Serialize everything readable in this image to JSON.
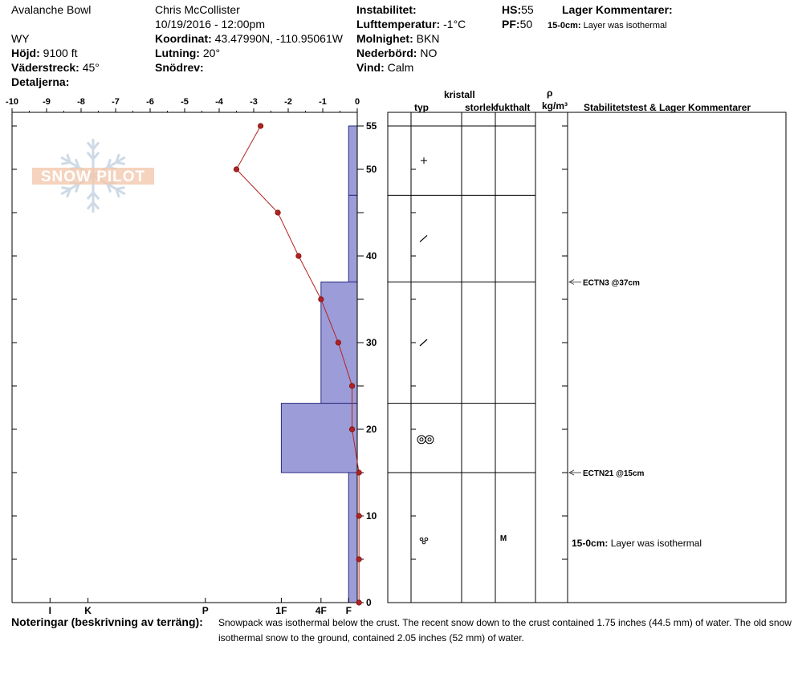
{
  "header": {
    "location": "Avalanche Bowl",
    "state": "WY",
    "elevation_label": "Höjd:",
    "elevation_value": "9100 ft",
    "aspect_label": "Väderstreck:",
    "aspect_value": "45°",
    "details_label": "Detaljerna:",
    "observer": "Chris McCollister",
    "datetime": "10/19/2016 - 12:00pm",
    "coord_label": "Koordinat:",
    "coord_value": "43.47990N, -110.95061W",
    "slope_label": "Lutning:",
    "slope_value": "20°",
    "drift_label": "Snödrev:",
    "instab_label": "Instabilitet:",
    "airtemp_label": "Lufttemperatur:",
    "airtemp_value": "-1°C",
    "cloud_label": "Molnighet:",
    "cloud_value": "BKN",
    "precip_label": "Nederbörd:",
    "precip_value": "NO",
    "wind_label": "Vind:",
    "wind_value": "Calm",
    "hs_label": "HS:",
    "hs_value": "55",
    "pf_label": "PF:",
    "pf_value": "50",
    "layer_comments_label": "Lager Kommentarer:",
    "layer_comment_range": "15-0cm:",
    "layer_comment_text": "Layer was isothermal"
  },
  "table": {
    "crystal_label": "kristall",
    "type_label": "typ",
    "size_label": "storlek",
    "moisture_label": "fukthalt",
    "density_symbol": "ρ",
    "density_unit": "kg/m³",
    "stability_label": "Stabilitetstest & Lager Kommentarer",
    "tests": [
      {
        "depth": 37,
        "label": "ECTN3 @37cm"
      },
      {
        "depth": 15,
        "label": "ECTN21 @15cm"
      }
    ],
    "comment_range": "15-0cm:",
    "comment_text": "Layer was isothermal",
    "layers": [
      {
        "top": 55,
        "bottom": 47,
        "grain": "plus"
      },
      {
        "top": 47,
        "bottom": 37,
        "grain": "slash"
      },
      {
        "top": 37,
        "bottom": 23,
        "grain": "slash"
      },
      {
        "top": 23,
        "bottom": 15,
        "grain": "rounds"
      },
      {
        "top": 15,
        "bottom": 0,
        "grain": "wet",
        "moisture": "M"
      }
    ]
  },
  "notes": {
    "label": "Noteringar (beskrivning av terräng):",
    "line1": "Snowpack was isothermal below the crust. The recent snow down to the crust contained 1.75 inches (44.5 mm) of water. The old snow",
    "line2": "isothermal snow to the ground, contained 2.05 inches (52 mm) of water."
  },
  "logo": {
    "text": "SNOW PILOT"
  },
  "chart_data": {
    "type": "line",
    "x_axis": {
      "range": [
        -10,
        0
      ],
      "ticks": [
        -10,
        -9,
        -8,
        -7,
        -6,
        -5,
        -4,
        -3,
        -2,
        -1,
        0
      ],
      "tick_labels": [
        "-10",
        "-9",
        "-8",
        "-7",
        "-6",
        "-5",
        "-4",
        "-3",
        "-2",
        "-1",
        "0"
      ]
    },
    "y_axis": {
      "range": [
        0,
        56
      ],
      "tick_labels": [
        0,
        10,
        20,
        30,
        40,
        50,
        55
      ]
    },
    "hardness_axis": {
      "labels": [
        "I",
        "K",
        "P",
        "1F",
        "4F",
        "F"
      ],
      "positions": [
        -8.9,
        -7.8,
        -4.4,
        -2.2,
        -1.05,
        -0.25
      ]
    },
    "temperature_profile": {
      "depth": [
        55,
        50,
        45,
        40,
        35,
        30,
        25,
        20,
        15,
        10,
        5,
        0
      ],
      "temp": [
        -2.8,
        -3.5,
        -2.3,
        -1.7,
        -1.05,
        -0.55,
        -0.15,
        -0.15,
        0.05,
        0.05,
        0.05,
        0.05
      ]
    },
    "hardness_layers": [
      {
        "top": 55,
        "bottom": 47,
        "hardness": "F"
      },
      {
        "top": 47,
        "bottom": 37,
        "hardness": "F"
      },
      {
        "top": 37,
        "bottom": 23,
        "hardness": "4F"
      },
      {
        "top": 23,
        "bottom": 15,
        "hardness": "1F"
      },
      {
        "top": 15,
        "bottom": 0,
        "hardness": "F"
      }
    ],
    "colors": {
      "hardness_fill": "#9c9cd8",
      "hardness_stroke": "#2a2a80",
      "temp_line": "#b22222"
    }
  }
}
